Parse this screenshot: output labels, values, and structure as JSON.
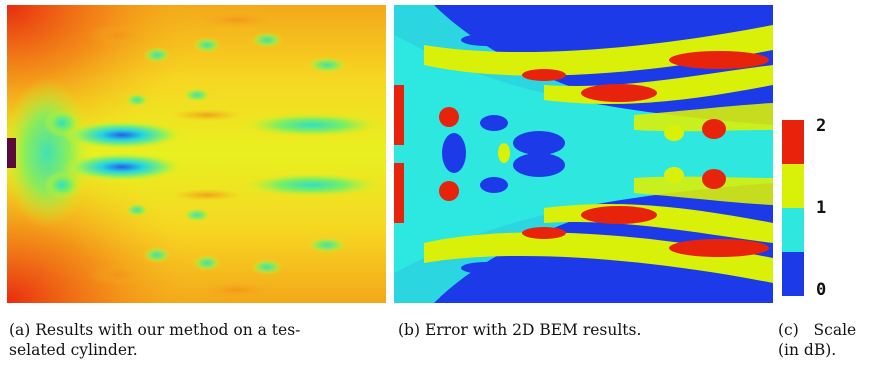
{
  "captions": {
    "a_line1": "(a) Results with our method on a tes-",
    "a_line2": "selated cylinder.",
    "b": "(b) Error with 2D BEM results.",
    "c_line1": "(c)   Scale",
    "c_line2": "(in dB)."
  },
  "scale": {
    "labels": [
      "2",
      "1",
      "0"
    ],
    "colors": [
      "#e8230b",
      "#d9f009",
      "#2ee8e0",
      "#1c3ae8"
    ]
  }
}
